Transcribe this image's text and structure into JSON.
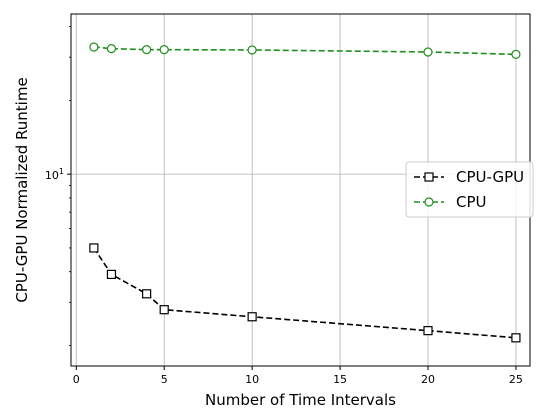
{
  "chart_data": {
    "type": "line",
    "title": "",
    "xlabel": "Number of Time Intervals",
    "ylabel": "CPU-GPU Normalized Runtime",
    "xlim": [
      -0.3,
      25.8
    ],
    "ylim": [
      1.65,
      45
    ],
    "yscale": "log",
    "grid": true,
    "legend_position": "center-right",
    "x_ticks": [
      0,
      5,
      10,
      15,
      20,
      25
    ],
    "x_tick_labels": [
      "0",
      "5",
      "10",
      "15",
      "20",
      "25"
    ],
    "y_ticks": [
      10
    ],
    "y_tick_labels": [
      "10"
    ],
    "y_tick_exponents": [
      "1"
    ],
    "series": [
      {
        "name": "CPU-GPU",
        "x": [
          1,
          2,
          4,
          5,
          10,
          20,
          25
        ],
        "y": [
          5.0,
          3.9,
          3.25,
          2.8,
          2.62,
          2.3,
          2.15
        ],
        "color": "#000000",
        "marker": "square"
      },
      {
        "name": "CPU",
        "x": [
          1,
          2,
          4,
          5,
          10,
          20,
          25
        ],
        "y": [
          33,
          32.5,
          32.2,
          32.2,
          32.1,
          31.5,
          30.8
        ],
        "color": "#1f8f1f",
        "marker": "circle"
      }
    ]
  }
}
